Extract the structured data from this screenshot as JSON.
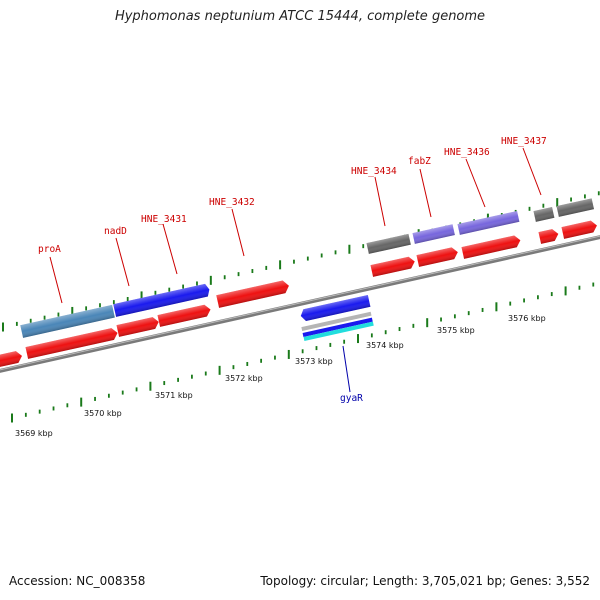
{
  "title": "Hyphomonas neptunium ATCC 15444, complete genome",
  "footer": {
    "accession": "Accession: NC_008358",
    "topology": "Topology: circular; Length: 3,705,021 bp; Genes: 3,552"
  },
  "scale_labels": [
    "3569 kbp",
    "3570 kbp",
    "3571 kbp",
    "3572 kbp",
    "3573 kbp",
    "3574 kbp",
    "3575 kbp",
    "3576 kbp"
  ],
  "gene_labels": [
    {
      "name": "proA",
      "strand": "forward"
    },
    {
      "name": "nadD",
      "strand": "forward"
    },
    {
      "name": "HNE_3431",
      "strand": "forward"
    },
    {
      "name": "HNE_3432",
      "strand": "forward"
    },
    {
      "name": "HNE_3434",
      "strand": "forward"
    },
    {
      "name": "fabZ",
      "strand": "forward"
    },
    {
      "name": "HNE_3436",
      "strand": "forward"
    },
    {
      "name": "HNE_3437",
      "strand": "forward"
    },
    {
      "name": "gyaR",
      "strand": "reverse"
    }
  ],
  "colors": {
    "label_forward": "#cc0000",
    "label_reverse": "#0000aa",
    "cds_red": "#ee1111",
    "gene_blue": "#1a1aee",
    "gene_steel": "#4a86b8",
    "gene_purple": "#7766dd",
    "gene_gray": "#666666",
    "tick_green": "#1a7a1a",
    "backbone": "#888888"
  }
}
